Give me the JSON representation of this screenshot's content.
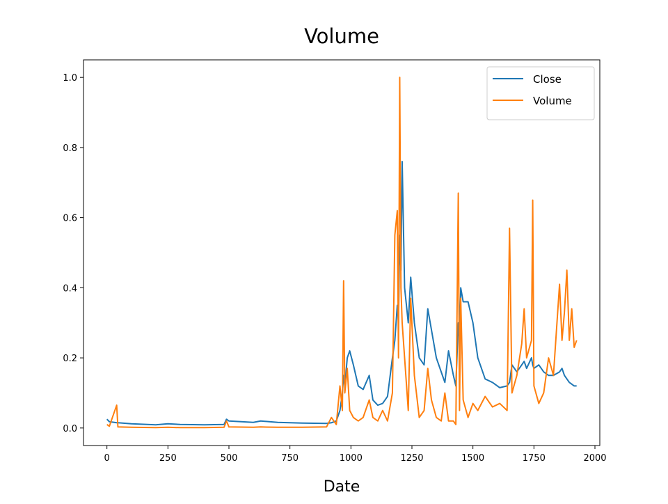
{
  "chart_data": {
    "type": "line",
    "title": "Volume",
    "x_label": "Date",
    "x": [
      0,
      10,
      40,
      45,
      100,
      200,
      250,
      300,
      400,
      480,
      490,
      500,
      600,
      630,
      700,
      800,
      900,
      920,
      940,
      955,
      965,
      970,
      975,
      985,
      995,
      1010,
      1030,
      1050,
      1075,
      1090,
      1110,
      1130,
      1150,
      1170,
      1180,
      1190,
      1195,
      1200,
      1205,
      1210,
      1220,
      1235,
      1245,
      1260,
      1280,
      1300,
      1315,
      1330,
      1350,
      1370,
      1385,
      1400,
      1420,
      1430,
      1440,
      1445,
      1450,
      1460,
      1480,
      1500,
      1520,
      1550,
      1580,
      1610,
      1640,
      1650,
      1660,
      1680,
      1700,
      1710,
      1720,
      1740,
      1745,
      1750,
      1770,
      1790,
      1810,
      1830,
      1855,
      1865,
      1875,
      1885,
      1895,
      1905,
      1915,
      1925
    ],
    "series": [
      {
        "name": "Close",
        "color": "#1f77b4",
        "values": [
          0.025,
          0.018,
          0.015,
          0.015,
          0.012,
          0.009,
          0.012,
          0.01,
          0.009,
          0.01,
          0.025,
          0.02,
          0.016,
          0.02,
          0.016,
          0.014,
          0.013,
          0.015,
          0.02,
          0.05,
          0.1,
          0.15,
          0.12,
          0.2,
          0.22,
          0.18,
          0.12,
          0.11,
          0.15,
          0.08,
          0.065,
          0.07,
          0.09,
          0.2,
          0.25,
          0.35,
          0.3,
          0.55,
          0.45,
          0.76,
          0.4,
          0.3,
          0.43,
          0.3,
          0.2,
          0.18,
          0.34,
          0.28,
          0.2,
          0.16,
          0.13,
          0.22,
          0.15,
          0.12,
          0.3,
          0.25,
          0.4,
          0.36,
          0.36,
          0.3,
          0.2,
          0.14,
          0.13,
          0.115,
          0.12,
          0.13,
          0.18,
          0.16,
          0.18,
          0.19,
          0.17,
          0.2,
          0.18,
          0.17,
          0.18,
          0.16,
          0.15,
          0.15,
          0.16,
          0.17,
          0.15,
          0.14,
          0.13,
          0.125,
          0.12,
          0.12
        ]
      },
      {
        "name": "Volume",
        "color": "#ff7f0e",
        "values": [
          0.01,
          0.005,
          0.065,
          0.003,
          0.002,
          0.001,
          0.002,
          0.001,
          0.001,
          0.002,
          0.02,
          0.003,
          0.002,
          0.003,
          0.002,
          0.002,
          0.003,
          0.03,
          0.01,
          0.12,
          0.05,
          0.42,
          0.1,
          0.17,
          0.05,
          0.03,
          0.02,
          0.03,
          0.08,
          0.03,
          0.02,
          0.05,
          0.02,
          0.1,
          0.55,
          0.62,
          0.2,
          1.0,
          0.4,
          0.3,
          0.2,
          0.05,
          0.37,
          0.15,
          0.03,
          0.05,
          0.17,
          0.08,
          0.03,
          0.02,
          0.1,
          0.02,
          0.02,
          0.01,
          0.67,
          0.05,
          0.37,
          0.08,
          0.03,
          0.07,
          0.05,
          0.09,
          0.06,
          0.07,
          0.05,
          0.57,
          0.1,
          0.15,
          0.24,
          0.34,
          0.2,
          0.25,
          0.65,
          0.12,
          0.07,
          0.1,
          0.2,
          0.15,
          0.41,
          0.25,
          0.33,
          0.45,
          0.25,
          0.34,
          0.23,
          0.25
        ]
      }
    ],
    "xlim": [
      -96,
      2020
    ],
    "ylim": [
      -0.05,
      1.05
    ],
    "xticks": [
      0,
      250,
      500,
      750,
      1000,
      1250,
      1500,
      1750,
      2000
    ],
    "yticks": [
      {
        "value": 0,
        "label": "0.0"
      },
      {
        "value": 0.2,
        "label": "0.2"
      },
      {
        "value": 0.4,
        "label": "0.4"
      },
      {
        "value": 0.6,
        "label": "0.6"
      },
      {
        "value": 0.8,
        "label": "0.8"
      },
      {
        "value": 1,
        "label": "1.0"
      }
    ],
    "legend": "upper right",
    "grid": false
  }
}
